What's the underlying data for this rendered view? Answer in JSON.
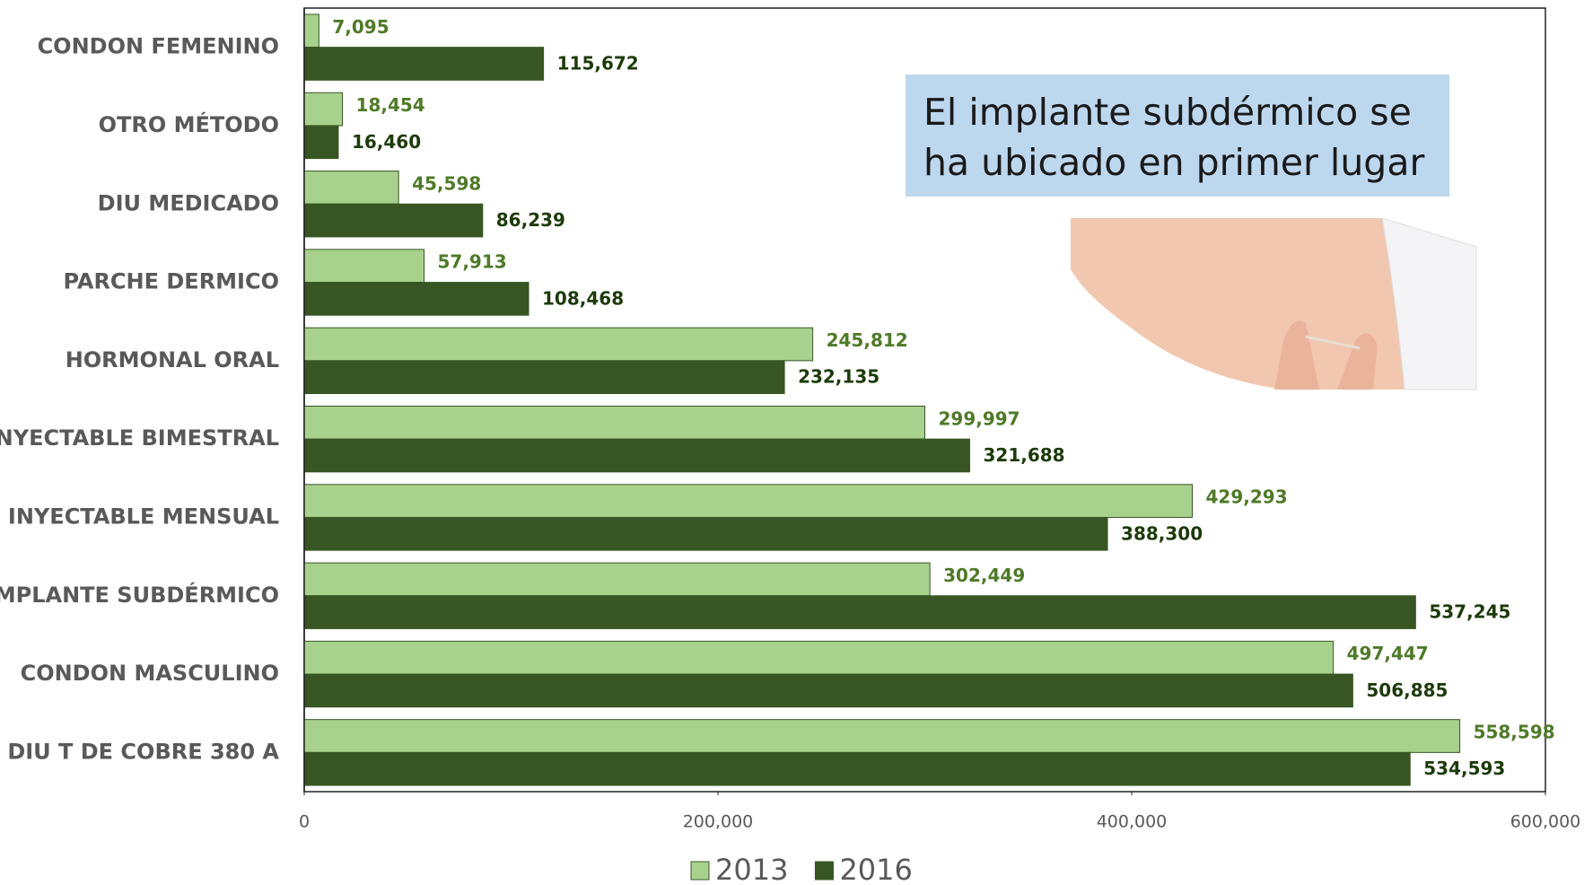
{
  "chart_data": {
    "type": "hbar",
    "categories": [
      "CONDON FEMENINO",
      "OTRO MÉTODO",
      "DIU MEDICADO",
      "PARCHE DERMICO",
      "HORMONAL ORAL",
      "INYECTABLE BIMESTRAL",
      "INYECTABLE MENSUAL",
      "IMPLANTE SUBDÉRMICO",
      "CONDON MASCULINO",
      "DIU T DE  COBRE  380 A"
    ],
    "series": [
      {
        "name": "2013",
        "color": "#a9d18e",
        "values": [
          7095,
          18454,
          45598,
          57913,
          245812,
          299997,
          429293,
          302449,
          497447,
          558598
        ],
        "value_labels": [
          "7,095",
          "18,454",
          "45,598",
          "57,913",
          "245,812",
          "299,997",
          "429,293",
          "302,449",
          "497,447",
          "558,598"
        ]
      },
      {
        "name": "2016",
        "color": "#375623",
        "values": [
          115672,
          16460,
          86239,
          108468,
          232135,
          321688,
          388300,
          537245,
          506885,
          534593
        ],
        "value_labels": [
          "115,672",
          "16,460",
          "86,239",
          "108,468",
          "232,135",
          "321,688",
          "388,300",
          "537,245",
          "506,885",
          "534,593"
        ]
      }
    ],
    "xlim": [
      0,
      600000
    ],
    "xticks": [
      0,
      {
        "value": 200000,
        "label": "200,000"
      },
      {
        "value": 400000,
        "label": "400,000"
      },
      {
        "value": 600000,
        "label": "600,000"
      }
    ],
    "grid": false,
    "legend": "bottom",
    "annotation": "El implante subdérmico se ha ubicado en primer lugar"
  }
}
